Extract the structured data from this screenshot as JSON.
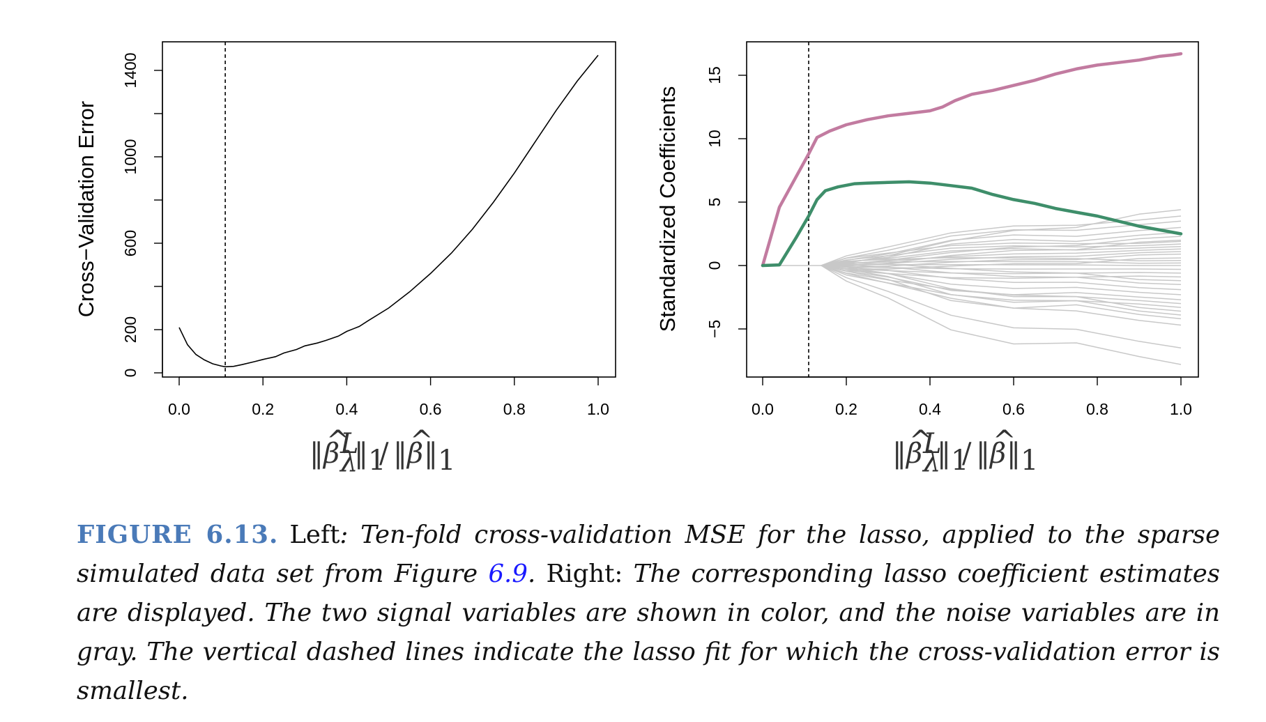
{
  "chart_data": [
    {
      "type": "line",
      "panel": "left",
      "ylabel": "Cross−Validation Error",
      "xlabel": "||β̂λL||1/||β̂||1",
      "xlim": [
        0.0,
        1.0
      ],
      "ylim": [
        0,
        1450
      ],
      "xticks": [
        "0.0",
        "0.2",
        "0.4",
        "0.6",
        "0.8",
        "1.0"
      ],
      "yticks": [
        "0",
        "200",
        "600",
        "1000",
        "1400"
      ],
      "ytick_marks": [
        0,
        200,
        400,
        600,
        800,
        1000,
        1200,
        1400
      ],
      "vline_x": 0.11,
      "vline_style": "dashed",
      "series": [
        {
          "color": "#000000",
          "x": [
            0.0,
            0.02,
            0.04,
            0.06,
            0.08,
            0.1,
            0.11,
            0.13,
            0.15,
            0.18,
            0.2,
            0.23,
            0.25,
            0.28,
            0.3,
            0.33,
            0.35,
            0.38,
            0.4,
            0.43,
            0.45,
            0.5,
            0.55,
            0.6,
            0.65,
            0.7,
            0.75,
            0.8,
            0.85,
            0.9,
            0.95,
            1.0
          ],
          "y": [
            210,
            130,
            85,
            60,
            42,
            32,
            28,
            30,
            38,
            52,
            62,
            75,
            92,
            108,
            125,
            138,
            150,
            170,
            192,
            215,
            240,
            300,
            375,
            460,
            555,
            665,
            790,
            925,
            1070,
            1215,
            1350,
            1470
          ]
        }
      ]
    },
    {
      "type": "line",
      "panel": "right",
      "ylabel": "Standardized Coefficients",
      "xlabel": "||β̂λL||1/||β̂||1",
      "xlim": [
        0.0,
        1.0
      ],
      "ylim": [
        -8.5,
        17.5
      ],
      "xticks": [
        "0.0",
        "0.2",
        "0.4",
        "0.6",
        "0.8",
        "1.0"
      ],
      "yticks": [
        "−5",
        "0",
        "5",
        "10",
        "15"
      ],
      "ytick_values": [
        -5,
        0,
        5,
        10,
        15
      ],
      "vline_x": 0.11,
      "vline_style": "dashed",
      "signal_series": [
        {
          "color": "#c27ba0",
          "x": [
            0.0,
            0.04,
            0.08,
            0.11,
            0.13,
            0.16,
            0.2,
            0.25,
            0.3,
            0.35,
            0.4,
            0.43,
            0.46,
            0.5,
            0.55,
            0.6,
            0.65,
            0.7,
            0.75,
            0.8,
            0.85,
            0.9,
            0.95,
            0.98,
            1.0
          ],
          "y": [
            0,
            4.6,
            7.0,
            8.8,
            10.1,
            10.6,
            11.1,
            11.5,
            11.8,
            12.0,
            12.2,
            12.5,
            13.0,
            13.5,
            13.8,
            14.2,
            14.6,
            15.1,
            15.5,
            15.8,
            16.0,
            16.2,
            16.5,
            16.6,
            16.7
          ]
        },
        {
          "color": "#3e8e6a",
          "x": [
            0.0,
            0.04,
            0.08,
            0.11,
            0.13,
            0.15,
            0.18,
            0.22,
            0.25,
            0.3,
            0.35,
            0.4,
            0.45,
            0.5,
            0.55,
            0.6,
            0.65,
            0.7,
            0.75,
            0.8,
            0.85,
            0.9,
            0.95,
            1.0
          ],
          "y": [
            0,
            0.05,
            2.2,
            3.9,
            5.2,
            5.9,
            6.2,
            6.45,
            6.5,
            6.55,
            6.6,
            6.5,
            6.3,
            6.1,
            5.6,
            5.2,
            4.9,
            4.5,
            4.2,
            3.9,
            3.5,
            3.1,
            2.8,
            2.5
          ]
        }
      ],
      "noise_color": "#c8c8c8",
      "noise_start_x": 0.14,
      "noise_end_values": [
        4.4,
        3.9,
        3.5,
        3.0,
        2.6,
        2.3,
        2.0,
        1.9,
        1.7,
        1.5,
        1.3,
        1.1,
        0.9,
        0.6,
        0.4,
        0.2,
        0.0,
        -0.3,
        -0.6,
        -0.9,
        -1.2,
        -1.5,
        -1.9,
        -2.3,
        -2.7,
        -3.0,
        -3.3,
        -3.6,
        -3.9,
        -4.2,
        -4.7,
        -6.5,
        -7.8
      ]
    }
  ],
  "caption": {
    "label": "FIGURE 6.13.",
    "left_word": "Left",
    "part1": ": Ten-fold cross-validation MSE for the lasso, applied to the sparse simulated data set from Figure ",
    "figure_ref": "6.9",
    "part2": ". ",
    "right_word": "Right:",
    "part3": " The corresponding lasso coefficient estimates are displayed. The two signal variables are shown in color, and the noise variables are in gray. The vertical dashed lines indicate the lasso fit for which the cross-validation error is smallest."
  }
}
